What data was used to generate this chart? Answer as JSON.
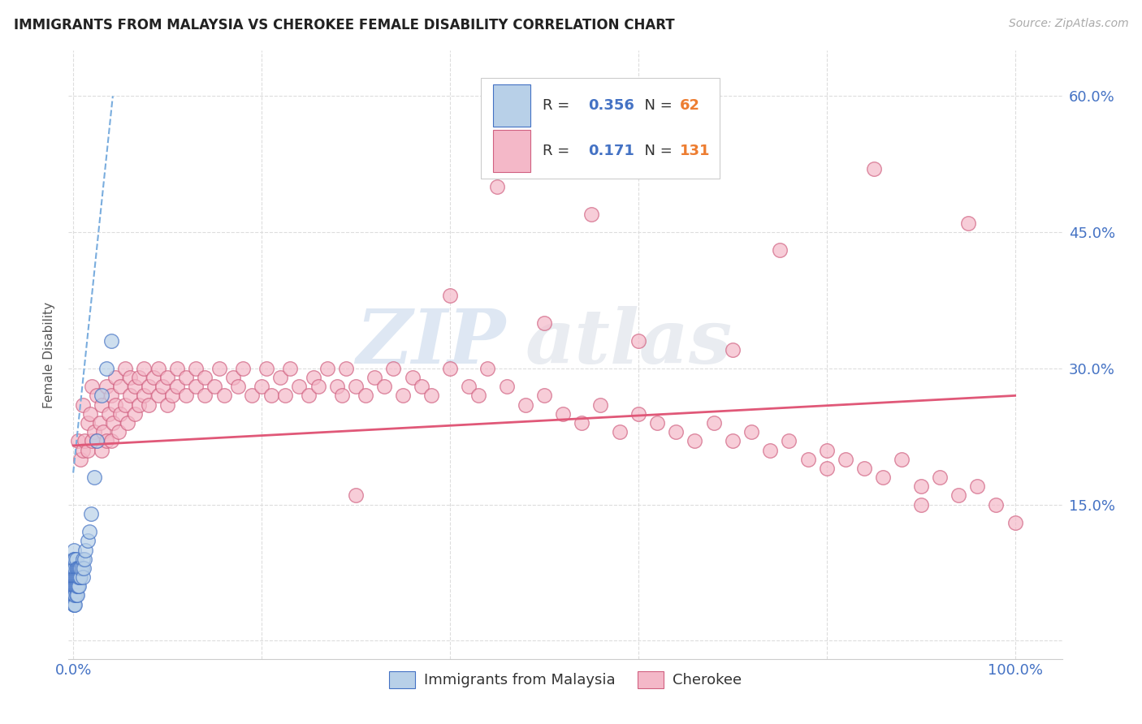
{
  "title": "IMMIGRANTS FROM MALAYSIA VS CHEROKEE FEMALE DISABILITY CORRELATION CHART",
  "source": "Source: ZipAtlas.com",
  "ylabel": "Female Disability",
  "y_ticks": [
    0.0,
    0.15,
    0.3,
    0.45,
    0.6
  ],
  "y_tick_labels_right": [
    "15.0%",
    "30.0%",
    "45.0%",
    "60.0%"
  ],
  "x_ticks": [
    0.0,
    0.2,
    0.4,
    0.6,
    0.8,
    1.0
  ],
  "malaysia_R": "0.356",
  "malaysia_N": "62",
  "cherokee_R": "0.171",
  "cherokee_N": "131",
  "malaysia_scatter": {
    "color": "#b8d0e8",
    "edge_color": "#4472c4",
    "x": [
      0.0005,
      0.0005,
      0.0005,
      0.0005,
      0.0005,
      0.0005,
      0.0005,
      0.0005,
      0.0005,
      0.0005,
      0.001,
      0.001,
      0.001,
      0.001,
      0.001,
      0.001,
      0.001,
      0.001,
      0.0015,
      0.0015,
      0.0015,
      0.002,
      0.002,
      0.002,
      0.002,
      0.002,
      0.002,
      0.0025,
      0.0025,
      0.003,
      0.003,
      0.003,
      0.003,
      0.003,
      0.004,
      0.004,
      0.004,
      0.004,
      0.005,
      0.005,
      0.005,
      0.006,
      0.006,
      0.006,
      0.007,
      0.007,
      0.008,
      0.008,
      0.009,
      0.01,
      0.01,
      0.011,
      0.012,
      0.013,
      0.015,
      0.017,
      0.019,
      0.022,
      0.025,
      0.03,
      0.035,
      0.04
    ],
    "y": [
      0.04,
      0.05,
      0.05,
      0.06,
      0.06,
      0.07,
      0.07,
      0.08,
      0.09,
      0.1,
      0.04,
      0.05,
      0.06,
      0.06,
      0.07,
      0.07,
      0.08,
      0.09,
      0.05,
      0.06,
      0.07,
      0.04,
      0.05,
      0.06,
      0.07,
      0.08,
      0.09,
      0.06,
      0.07,
      0.05,
      0.06,
      0.07,
      0.08,
      0.09,
      0.05,
      0.06,
      0.07,
      0.08,
      0.06,
      0.07,
      0.08,
      0.06,
      0.07,
      0.08,
      0.07,
      0.08,
      0.07,
      0.08,
      0.08,
      0.07,
      0.09,
      0.08,
      0.09,
      0.1,
      0.11,
      0.12,
      0.14,
      0.18,
      0.22,
      0.27,
      0.3,
      0.33
    ]
  },
  "cherokee_scatter": {
    "color": "#f4b8c8",
    "edge_color": "#d06080",
    "x": [
      0.005,
      0.008,
      0.01,
      0.01,
      0.012,
      0.015,
      0.015,
      0.018,
      0.02,
      0.02,
      0.022,
      0.025,
      0.025,
      0.028,
      0.03,
      0.03,
      0.032,
      0.035,
      0.035,
      0.038,
      0.04,
      0.04,
      0.042,
      0.045,
      0.045,
      0.048,
      0.05,
      0.05,
      0.055,
      0.055,
      0.058,
      0.06,
      0.06,
      0.065,
      0.065,
      0.07,
      0.07,
      0.075,
      0.075,
      0.08,
      0.08,
      0.085,
      0.09,
      0.09,
      0.095,
      0.1,
      0.1,
      0.105,
      0.11,
      0.11,
      0.12,
      0.12,
      0.13,
      0.13,
      0.14,
      0.14,
      0.15,
      0.155,
      0.16,
      0.17,
      0.175,
      0.18,
      0.19,
      0.2,
      0.205,
      0.21,
      0.22,
      0.225,
      0.23,
      0.24,
      0.25,
      0.255,
      0.26,
      0.27,
      0.28,
      0.285,
      0.29,
      0.3,
      0.31,
      0.32,
      0.33,
      0.34,
      0.35,
      0.36,
      0.37,
      0.38,
      0.4,
      0.42,
      0.43,
      0.44,
      0.46,
      0.48,
      0.5,
      0.52,
      0.54,
      0.56,
      0.58,
      0.6,
      0.62,
      0.64,
      0.66,
      0.68,
      0.7,
      0.72,
      0.74,
      0.76,
      0.78,
      0.8,
      0.82,
      0.84,
      0.86,
      0.88,
      0.9,
      0.92,
      0.94,
      0.96,
      0.98,
      1.0,
      0.45,
      0.55,
      0.65,
      0.75,
      0.85,
      0.95,
      0.5,
      0.6,
      0.7,
      0.8,
      0.9,
      0.4,
      0.3
    ],
    "y": [
      0.22,
      0.2,
      0.21,
      0.26,
      0.22,
      0.24,
      0.21,
      0.25,
      0.22,
      0.28,
      0.23,
      0.22,
      0.27,
      0.24,
      0.21,
      0.26,
      0.23,
      0.22,
      0.28,
      0.25,
      0.22,
      0.27,
      0.24,
      0.26,
      0.29,
      0.23,
      0.25,
      0.28,
      0.26,
      0.3,
      0.24,
      0.27,
      0.29,
      0.25,
      0.28,
      0.26,
      0.29,
      0.27,
      0.3,
      0.26,
      0.28,
      0.29,
      0.27,
      0.3,
      0.28,
      0.26,
      0.29,
      0.27,
      0.28,
      0.3,
      0.27,
      0.29,
      0.28,
      0.3,
      0.27,
      0.29,
      0.28,
      0.3,
      0.27,
      0.29,
      0.28,
      0.3,
      0.27,
      0.28,
      0.3,
      0.27,
      0.29,
      0.27,
      0.3,
      0.28,
      0.27,
      0.29,
      0.28,
      0.3,
      0.28,
      0.27,
      0.3,
      0.28,
      0.27,
      0.29,
      0.28,
      0.3,
      0.27,
      0.29,
      0.28,
      0.27,
      0.3,
      0.28,
      0.27,
      0.3,
      0.28,
      0.26,
      0.27,
      0.25,
      0.24,
      0.26,
      0.23,
      0.25,
      0.24,
      0.23,
      0.22,
      0.24,
      0.22,
      0.23,
      0.21,
      0.22,
      0.2,
      0.21,
      0.2,
      0.19,
      0.18,
      0.2,
      0.17,
      0.18,
      0.16,
      0.17,
      0.15,
      0.13,
      0.5,
      0.47,
      0.53,
      0.43,
      0.52,
      0.46,
      0.35,
      0.33,
      0.32,
      0.19,
      0.15,
      0.38,
      0.16
    ]
  },
  "malaysia_trend": {
    "x": [
      0.0,
      0.042
    ],
    "y": [
      0.185,
      0.6
    ],
    "color": "#7aadde",
    "linestyle": "--",
    "linewidth": 1.5
  },
  "cherokee_trend": {
    "x": [
      0.0,
      1.0
    ],
    "y": [
      0.215,
      0.27
    ],
    "color": "#e05878",
    "linestyle": "-",
    "linewidth": 2.0
  },
  "watermark_zip": "ZIP",
  "watermark_atlas": "atlas",
  "background_color": "#ffffff",
  "grid_color": "#dddddd",
  "xlim": [
    -0.005,
    1.05
  ],
  "ylim": [
    -0.02,
    0.65
  ]
}
